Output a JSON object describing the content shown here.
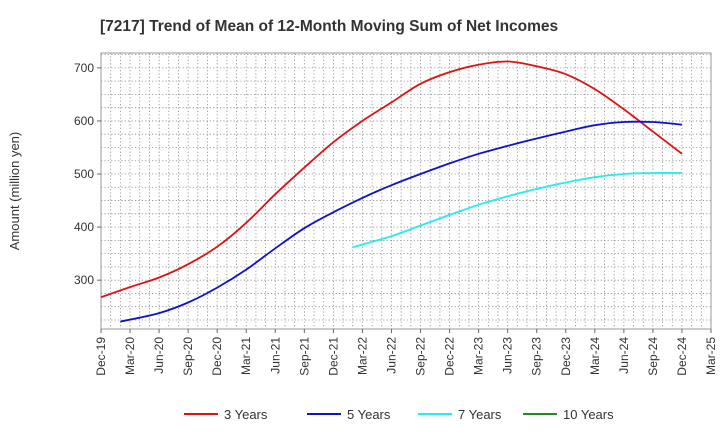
{
  "chart_data": {
    "type": "line",
    "title": "[7217]  Trend of Mean of 12-Month Moving Sum of Net Incomes",
    "ylabel": "Amount (million yen)",
    "xlabel": "",
    "ylim": [
      208,
      728
    ],
    "yticks": [
      300,
      400,
      500,
      600,
      700
    ],
    "x_tick_labels": [
      "Dec-19",
      "Mar-20",
      "Jun-20",
      "Sep-20",
      "Dec-20",
      "Mar-21",
      "Jun-21",
      "Sep-21",
      "Dec-21",
      "Mar-22",
      "Jun-22",
      "Sep-22",
      "Dec-22",
      "Mar-23",
      "Jun-23",
      "Sep-23",
      "Dec-23",
      "Mar-24",
      "Jun-24",
      "Sep-24",
      "Dec-24",
      "Mar-25"
    ],
    "grid": true,
    "legend_position": "bottom",
    "series": [
      {
        "name": "3 Years",
        "color": "#dd1111",
        "points": [
          [
            "Dec-19",
            268
          ],
          [
            "Mar-20",
            287
          ],
          [
            "Jun-20",
            305
          ],
          [
            "Sep-20",
            330
          ],
          [
            "Dec-20",
            363
          ],
          [
            "Mar-21",
            408
          ],
          [
            "Jun-21",
            462
          ],
          [
            "Sep-21",
            512
          ],
          [
            "Dec-21",
            560
          ],
          [
            "Mar-22",
            600
          ],
          [
            "Jun-22",
            635
          ],
          [
            "Sep-22",
            670
          ],
          [
            "Dec-22",
            692
          ],
          [
            "Mar-23",
            706
          ],
          [
            "Jun-23",
            712
          ],
          [
            "Sep-23",
            703
          ],
          [
            "Dec-23",
            688
          ],
          [
            "Mar-24",
            660
          ],
          [
            "Jun-24",
            622
          ],
          [
            "Sep-24",
            580
          ],
          [
            "Dec-24",
            538
          ]
        ]
      },
      {
        "name": "5 Years",
        "color": "#1111cc",
        "points": [
          [
            "Feb-20",
            222
          ],
          [
            "Jun-20",
            238
          ],
          [
            "Sep-20",
            258
          ],
          [
            "Dec-20",
            286
          ],
          [
            "Mar-21",
            320
          ],
          [
            "Jun-21",
            360
          ],
          [
            "Sep-21",
            398
          ],
          [
            "Dec-21",
            428
          ],
          [
            "Mar-22",
            455
          ],
          [
            "Jun-22",
            479
          ],
          [
            "Sep-22",
            500
          ],
          [
            "Dec-22",
            520
          ],
          [
            "Mar-23",
            538
          ],
          [
            "Jun-23",
            553
          ],
          [
            "Sep-23",
            567
          ],
          [
            "Dec-23",
            580
          ],
          [
            "Mar-24",
            592
          ],
          [
            "Jun-24",
            598
          ],
          [
            "Sep-24",
            598
          ],
          [
            "Dec-24",
            593
          ]
        ]
      },
      {
        "name": "7 Years",
        "color": "#22eeee",
        "points": [
          [
            "Feb-22",
            362
          ],
          [
            "Jun-22",
            383
          ],
          [
            "Sep-22",
            403
          ],
          [
            "Dec-22",
            423
          ],
          [
            "Mar-23",
            442
          ],
          [
            "Jun-23",
            458
          ],
          [
            "Sep-23",
            472
          ],
          [
            "Dec-23",
            484
          ],
          [
            "Mar-24",
            494
          ],
          [
            "Jun-24",
            500
          ],
          [
            "Sep-24",
            502
          ],
          [
            "Dec-24",
            502
          ]
        ]
      },
      {
        "name": "10 Years",
        "color": "#228822",
        "points": []
      }
    ]
  }
}
